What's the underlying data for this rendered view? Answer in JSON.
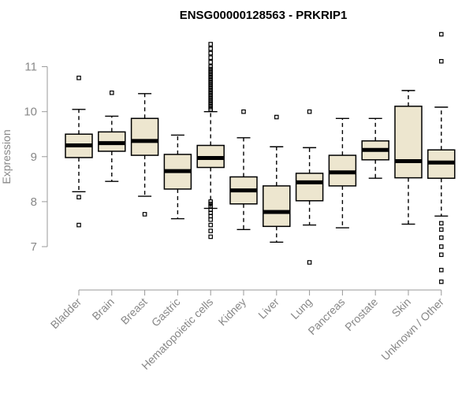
{
  "chart_data": {
    "type": "boxplot",
    "title": "ENSG00000128563 - PRKRIP1",
    "xlabel": "",
    "ylabel": "Expression",
    "ylim": [
      6.1,
      11.8
    ],
    "yticks": [
      7,
      8,
      9,
      10,
      11
    ],
    "colors": {
      "box_fill": "#ede6cf",
      "box_stroke": "#000000",
      "axis": "#999999",
      "label": "#888888"
    },
    "categories": [
      "Bladder",
      "Brain",
      "Breast",
      "Gastric",
      "Hematopoietic cells",
      "Kidney",
      "Liver",
      "Lung",
      "Pancreas",
      "Prostate",
      "Skin",
      "Unknown / Other"
    ],
    "boxes": [
      {
        "category": "Bladder",
        "whisker_low": 8.22,
        "q1": 8.98,
        "median": 9.25,
        "q3": 9.5,
        "whisker_high": 10.05,
        "outliers": [
          10.75,
          8.1,
          7.48
        ]
      },
      {
        "category": "Brain",
        "whisker_low": 8.45,
        "q1": 9.12,
        "median": 9.3,
        "q3": 9.55,
        "whisker_high": 9.9,
        "outliers": [
          10.42
        ]
      },
      {
        "category": "Breast",
        "whisker_low": 8.12,
        "q1": 9.03,
        "median": 9.35,
        "q3": 9.85,
        "whisker_high": 10.4,
        "outliers": [
          7.72
        ]
      },
      {
        "category": "Gastric",
        "whisker_low": 7.62,
        "q1": 8.28,
        "median": 8.68,
        "q3": 9.05,
        "whisker_high": 9.48,
        "outliers": []
      },
      {
        "category": "Hematopoietic cells",
        "whisker_low": 7.85,
        "q1": 8.76,
        "median": 8.97,
        "q3": 9.25,
        "whisker_high": 10.0,
        "outliers": [
          11.5,
          11.4,
          11.3,
          11.2,
          11.1,
          11.0,
          10.95,
          10.9,
          10.85,
          10.8,
          10.75,
          10.7,
          10.65,
          10.6,
          10.55,
          10.5,
          10.45,
          10.4,
          10.35,
          10.3,
          10.25,
          10.2,
          10.15,
          10.1,
          10.05,
          8.0,
          7.95,
          7.9,
          7.82,
          7.75,
          7.68,
          7.6,
          7.48,
          7.35,
          7.22
        ]
      },
      {
        "category": "Kidney",
        "whisker_low": 7.38,
        "q1": 7.95,
        "median": 8.25,
        "q3": 8.55,
        "whisker_high": 9.42,
        "outliers": [
          10.0
        ]
      },
      {
        "category": "Liver",
        "whisker_low": 7.1,
        "q1": 7.45,
        "median": 7.77,
        "q3": 8.35,
        "whisker_high": 9.22,
        "outliers": [
          9.88
        ]
      },
      {
        "category": "Lung",
        "whisker_low": 7.48,
        "q1": 8.02,
        "median": 8.43,
        "q3": 8.63,
        "whisker_high": 9.2,
        "outliers": [
          10.0,
          6.65
        ]
      },
      {
        "category": "Pancreas",
        "whisker_low": 7.42,
        "q1": 8.35,
        "median": 8.65,
        "q3": 9.03,
        "whisker_high": 9.85,
        "outliers": []
      },
      {
        "category": "Prostate",
        "whisker_low": 8.52,
        "q1": 8.93,
        "median": 9.15,
        "q3": 9.35,
        "whisker_high": 9.85,
        "outliers": []
      },
      {
        "category": "Skin",
        "whisker_low": 7.5,
        "q1": 8.53,
        "median": 8.9,
        "q3": 10.12,
        "whisker_high": 10.47,
        "outliers": []
      },
      {
        "category": "Unknown / Other",
        "whisker_low": 7.68,
        "q1": 8.52,
        "median": 8.87,
        "q3": 9.15,
        "whisker_high": 10.1,
        "outliers": [
          11.72,
          11.12,
          7.52,
          7.38,
          7.2,
          7.0,
          6.82,
          6.48,
          6.22
        ]
      }
    ]
  }
}
